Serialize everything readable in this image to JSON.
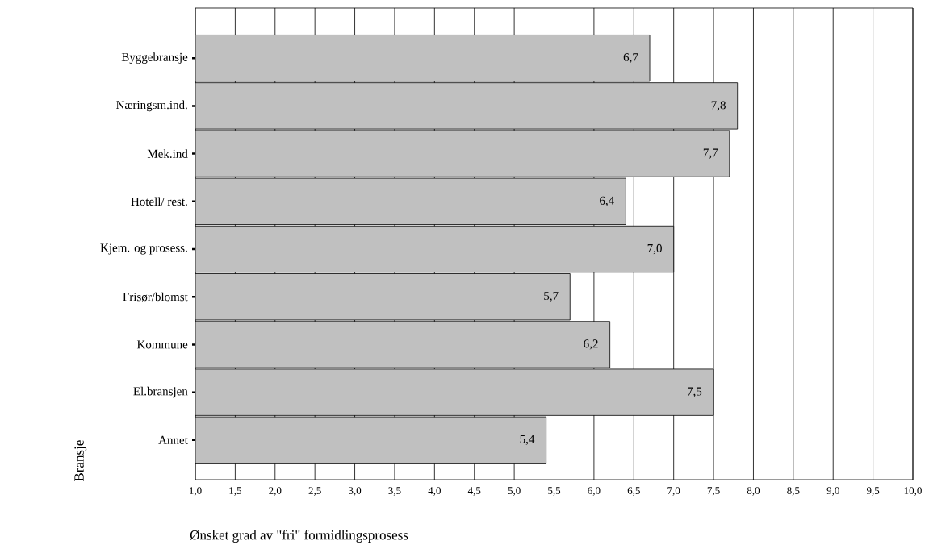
{
  "chart_data": {
    "type": "bar",
    "orientation": "horizontal",
    "xlabel": "Ønsket grad av \"fri\" formidlingsprosess",
    "ylabel": "Bransje",
    "categories": [
      "Byggebransje",
      "Næringsm.ind.",
      "Mek.ind",
      "Hotell/ rest.",
      "Kjem. og prosess.",
      "Frisør/blomst",
      "Kommune",
      "El.bransjen",
      "Annet"
    ],
    "values": [
      6.7,
      7.8,
      7.7,
      6.4,
      7.0,
      5.7,
      6.2,
      7.5,
      5.4
    ],
    "value_labels": [
      "6,7",
      "7,8",
      "7,7",
      "6,4",
      "7,0",
      "5,7",
      "6,2",
      "7,5",
      "5,4"
    ],
    "color": "#c0c0c0",
    "xlim": [
      1.0,
      10.0
    ],
    "xticks": [
      {
        "value": 1.0,
        "label": "1,0"
      },
      {
        "value": 1.5,
        "label": "1,5"
      },
      {
        "value": 2.0,
        "label": "2,0"
      },
      {
        "value": 2.5,
        "label": "2,5"
      },
      {
        "value": 3.0,
        "label": "3,0"
      },
      {
        "value": 3.5,
        "label": "3,5"
      },
      {
        "value": 4.0,
        "label": "4,0"
      },
      {
        "value": 4.5,
        "label": "4,5"
      },
      {
        "value": 5.0,
        "label": "5,0"
      },
      {
        "value": 5.5,
        "label": "5,5"
      },
      {
        "value": 6.0,
        "label": "6,0"
      },
      {
        "value": 6.5,
        "label": "6,5"
      },
      {
        "value": 7.0,
        "label": "7,0"
      },
      {
        "value": 7.5,
        "label": "7,5"
      },
      {
        "value": 8.0,
        "label": "8,0"
      },
      {
        "value": 8.5,
        "label": "8,5"
      },
      {
        "value": 9.0,
        "label": "9,0"
      },
      {
        "value": 9.5,
        "label": "9,5"
      },
      {
        "value": 10.0,
        "label": "10,0"
      }
    ],
    "grid": "x"
  }
}
